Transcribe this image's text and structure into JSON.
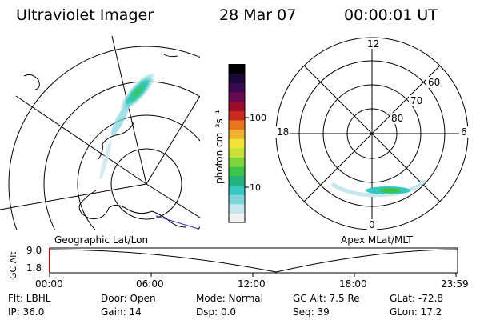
{
  "header": {
    "title": "Ultraviolet Imager",
    "date": "28 Mar 07",
    "time": "00:00:01  UT"
  },
  "colorbar": {
    "unit_label": "photon cm⁻²s⁻¹",
    "ticks": [
      "100",
      "10"
    ],
    "colors": [
      "#f2f2f2",
      "#c8e6ee",
      "#7fd6dd",
      "#35c8c0",
      "#24b27c",
      "#3cc44a",
      "#7ed43a",
      "#c7e03a",
      "#f2e23a",
      "#f0b12e",
      "#e8761f",
      "#cc2a1e",
      "#9a0d2a",
      "#6a0a4c",
      "#3a0a52",
      "#1c0838",
      "#000000"
    ]
  },
  "left_map": {
    "caption": "Geographic Lat/Lon"
  },
  "right_map": {
    "caption": "Apex  MLat/MLT",
    "mlt_labels": {
      "top": "12",
      "left": "18",
      "right": "6",
      "bottom": "0"
    },
    "lat_labels": [
      "60",
      "70",
      "80"
    ]
  },
  "altitude_plot": {
    "ylabel": "GC Alt",
    "yticks": [
      "9.0",
      "1.8"
    ],
    "xticks": [
      "00:00",
      "06:00",
      "12:00",
      "18:00",
      "23:59"
    ]
  },
  "info": {
    "filter": "Flt: LBHL",
    "ip": "IP: 36.0",
    "door": "Door: Open",
    "gain": "Gain: 14",
    "mode": "Mode: Normal",
    "dsp": "Dsp:      0.0",
    "gc_alt": "GC Alt:  7.5 Re",
    "seq": "Seq: 39",
    "glat": "GLat:  -72.8",
    "glon": "GLon:   17.2"
  }
}
